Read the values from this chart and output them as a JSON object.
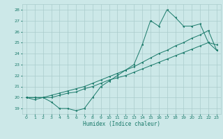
{
  "title": "",
  "xlabel": "Humidex (Indice chaleur)",
  "ylabel": "",
  "bg_color": "#cce8e8",
  "grid_color": "#aacccc",
  "line_color": "#1a7a6a",
  "xlim": [
    -0.5,
    23.5
  ],
  "ylim": [
    18.5,
    28.5
  ],
  "xticks": [
    0,
    1,
    2,
    3,
    4,
    5,
    6,
    7,
    8,
    9,
    10,
    11,
    12,
    13,
    14,
    15,
    16,
    17,
    18,
    19,
    20,
    21,
    22,
    23
  ],
  "yticks": [
    19,
    20,
    21,
    22,
    23,
    24,
    25,
    26,
    27,
    28
  ],
  "line1_x": [
    0,
    1,
    2,
    3,
    4,
    5,
    6,
    7,
    8,
    9,
    10,
    11,
    12,
    13,
    14,
    15,
    16,
    17,
    18,
    19,
    20,
    21,
    22,
    23
  ],
  "line1_y": [
    20.0,
    19.8,
    20.0,
    19.6,
    19.0,
    19.0,
    18.8,
    19.0,
    20.0,
    21.0,
    21.5,
    22.0,
    22.5,
    23.0,
    24.8,
    27.0,
    26.5,
    28.0,
    27.3,
    26.5,
    26.5,
    26.7,
    25.0,
    24.3
  ],
  "line2_x": [
    0,
    1,
    2,
    3,
    4,
    5,
    6,
    7,
    8,
    9,
    10,
    11,
    12,
    13,
    14,
    15,
    16,
    17,
    18,
    19,
    20,
    21,
    22,
    23
  ],
  "line2_y": [
    20.0,
    20.0,
    20.0,
    20.0,
    20.2,
    20.4,
    20.5,
    20.8,
    21.0,
    21.3,
    21.6,
    21.8,
    22.0,
    22.3,
    22.6,
    22.9,
    23.2,
    23.5,
    23.8,
    24.1,
    24.4,
    24.7,
    25.0,
    24.8
  ],
  "line3_x": [
    0,
    1,
    2,
    3,
    4,
    5,
    6,
    7,
    8,
    9,
    10,
    11,
    12,
    13,
    14,
    15,
    16,
    17,
    18,
    19,
    20,
    21,
    22,
    23
  ],
  "line3_y": [
    20.0,
    20.0,
    20.0,
    20.2,
    20.4,
    20.6,
    20.8,
    21.0,
    21.3,
    21.6,
    21.9,
    22.2,
    22.5,
    22.8,
    23.2,
    23.6,
    24.0,
    24.3,
    24.7,
    25.0,
    25.4,
    25.7,
    26.1,
    24.3
  ],
  "xlabel_fontsize": 5.5,
  "tick_fontsize": 4.5,
  "marker_size": 1.8,
  "line_width": 0.7
}
